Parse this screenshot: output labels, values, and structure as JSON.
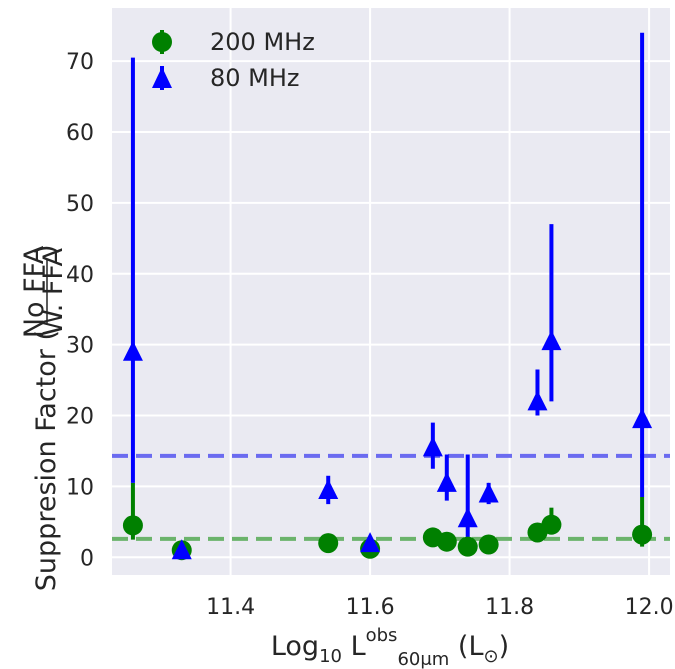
{
  "chart_data": {
    "type": "scatter",
    "title": "",
    "xlabel": {
      "prefix": "Log",
      "prefix_sub": "10",
      "main": " L",
      "sup": "obs",
      "sub": "60μm",
      "unit": " (L",
      "unit_sub": "⊙",
      "unit_close": ")"
    },
    "ylabel": {
      "main": "Suppresion Factor (",
      "frac_num": "No FFA",
      "frac_den": "W. FFA",
      "close": ")"
    },
    "xlim": [
      11.23,
      12.03
    ],
    "ylim": [
      -2.5,
      77.5
    ],
    "xticks": [
      11.4,
      11.6,
      11.8,
      12.0
    ],
    "xtick_labels": [
      "11.4",
      "11.6",
      "11.8",
      "12.0"
    ],
    "yticks": [
      0,
      10,
      20,
      30,
      40,
      50,
      60,
      70
    ],
    "ytick_labels": [
      "0",
      "10",
      "20",
      "30",
      "40",
      "50",
      "60",
      "70"
    ],
    "grid": true,
    "legend_position": "top-left",
    "series": [
      {
        "name": "200 MHz",
        "color": "#008000",
        "marker": "circle",
        "points": [
          {
            "x": 11.26,
            "y": 4.5,
            "err_low": 2.5,
            "err_high": 10.5
          },
          {
            "x": 11.33,
            "y": 1.0,
            "err_low": 0.5,
            "err_high": 2.0
          },
          {
            "x": 11.54,
            "y": 2.0,
            "err_low": 1.5,
            "err_high": 2.5
          },
          {
            "x": 11.6,
            "y": 1.2,
            "err_low": 0.8,
            "err_high": 1.8
          },
          {
            "x": 11.69,
            "y": 2.8,
            "err_low": 2.2,
            "err_high": 3.4
          },
          {
            "x": 11.71,
            "y": 2.2,
            "err_low": 1.7,
            "err_high": 2.8
          },
          {
            "x": 11.74,
            "y": 1.5,
            "err_low": 1.0,
            "err_high": 2.2
          },
          {
            "x": 11.77,
            "y": 1.8,
            "err_low": 1.3,
            "err_high": 2.4
          },
          {
            "x": 11.84,
            "y": 3.5,
            "err_low": 2.5,
            "err_high": 4.5
          },
          {
            "x": 11.86,
            "y": 4.6,
            "err_low": 3.2,
            "err_high": 7.0
          },
          {
            "x": 11.99,
            "y": 3.2,
            "err_low": 1.5,
            "err_high": 8.5
          }
        ]
      },
      {
        "name": "80 MHz",
        "color": "#0000ff",
        "marker": "triangle",
        "points": [
          {
            "x": 11.26,
            "y": 29.0,
            "err_low": 10.5,
            "err_high": 70.5
          },
          {
            "x": 11.33,
            "y": 1.0,
            "err_low": 0.5,
            "err_high": 1.8
          },
          {
            "x": 11.54,
            "y": 9.5,
            "err_low": 7.5,
            "err_high": 11.5
          },
          {
            "x": 11.6,
            "y": 2.0,
            "err_low": 1.2,
            "err_high": 2.8
          },
          {
            "x": 11.69,
            "y": 15.5,
            "err_low": 12.5,
            "err_high": 19.0
          },
          {
            "x": 11.71,
            "y": 10.5,
            "err_low": 8.0,
            "err_high": 14.5
          },
          {
            "x": 11.74,
            "y": 5.5,
            "err_low": 2.5,
            "err_high": 14.5
          },
          {
            "x": 11.77,
            "y": 9.0,
            "err_low": 7.5,
            "err_high": 10.5
          },
          {
            "x": 11.84,
            "y": 22.0,
            "err_low": 20.0,
            "err_high": 26.5
          },
          {
            "x": 11.86,
            "y": 30.5,
            "err_low": 22.0,
            "err_high": 47.0
          },
          {
            "x": 11.99,
            "y": 19.5,
            "err_low": 8.5,
            "err_high": 74.0
          }
        ]
      }
    ],
    "reference_lines": [
      {
        "series": "80 MHz",
        "y": 14.3,
        "color": "#6b6bf0",
        "style": "dashed"
      },
      {
        "series": "200 MHz",
        "y": 2.6,
        "color": "#6bb36b",
        "style": "dashed"
      }
    ]
  }
}
